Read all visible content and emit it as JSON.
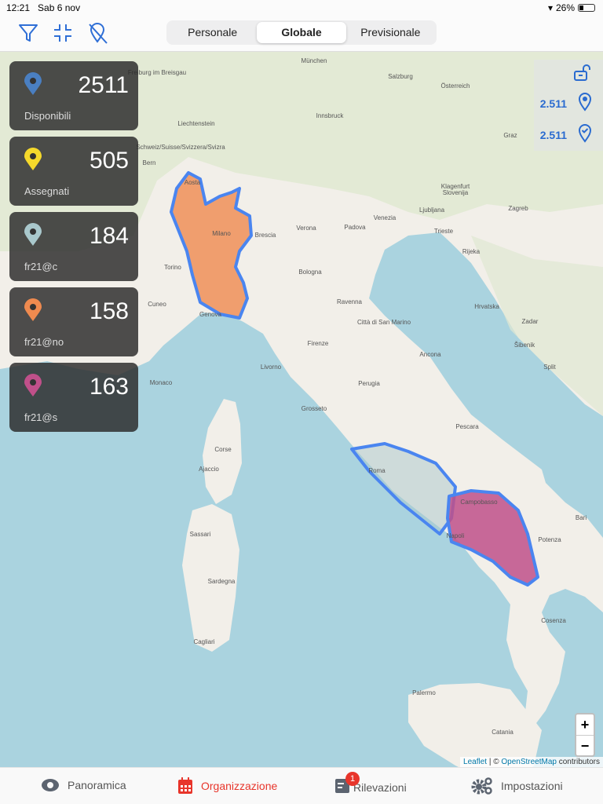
{
  "status": {
    "time": "12:21",
    "date": "Sab 6 nov",
    "battery": "26%",
    "battery_level": 0.26
  },
  "toolbar": {
    "icons": [
      "filter-icon",
      "collapse-icon",
      "location-off-icon"
    ]
  },
  "segments": {
    "items": [
      "Personale",
      "Globale",
      "Previsionale"
    ],
    "selected": "Globale"
  },
  "stats": [
    {
      "value": "2511",
      "label": "Disponibili",
      "color": "#4a7fc1"
    },
    {
      "value": "505",
      "label": "Assegnati",
      "color": "#f5d92b"
    },
    {
      "value": "184",
      "label": "fr21@c",
      "color": "#a9c8cc"
    },
    {
      "value": "158",
      "label": "fr21@no",
      "color": "#ef8a4f"
    },
    {
      "value": "163",
      "label": "fr21@s",
      "color": "#c0508a"
    }
  ],
  "right_panel": {
    "lock_icon": "lock-open-icon",
    "total": "2.511",
    "checked": "2.511"
  },
  "map": {
    "zoom_in": "+",
    "zoom_out": "−",
    "attribution": {
      "leaflet": "Leaflet",
      "sep": " | © ",
      "osm": "OpenStreetMap",
      "tail": " contributors"
    },
    "colors": {
      "region_border": "#4a85f0",
      "north_fill": "#ef8a4f",
      "south_fill": "#c0508a",
      "lazio_fill": "#a9c8cc"
    },
    "labels": [
      "München",
      "Salzburg",
      "Österreich",
      "Innsbruck",
      "Liechtenstein",
      "Freiburg im Breisgau",
      "Schweiz/Suisse/Svizzera/Svizra",
      "Bern",
      "Graz",
      "Klagenfurt",
      "Slovenija",
      "Ljubljana",
      "Zagreb",
      "Hrvatska",
      "Trieste",
      "Venezia",
      "Padova",
      "Verona",
      "Brescia",
      "Milano",
      "Torino",
      "Genova",
      "Bologna",
      "Firenze",
      "Ravenna",
      "Città di San Marino",
      "Ancona",
      "Perugia",
      "Roma",
      "Pescara",
      "Napoli",
      "Bari",
      "Cosenza",
      "Palermo",
      "Catania",
      "Sassari",
      "Cagliari",
      "Sardegna",
      "Corse",
      "Ajaccio",
      "Monaco",
      "Cuneo",
      "Aosta",
      "Livorno",
      "Grosseto",
      "Campobasso",
      "Potenza",
      "Split",
      "Zadar",
      "Šibenik",
      "Rijeka"
    ]
  },
  "tabs": [
    {
      "label": "Panoramica",
      "icon": "eye-icon"
    },
    {
      "label": "Organizzazione",
      "icon": "calendar-icon",
      "active": true
    },
    {
      "label": "Rilevazioni",
      "icon": "survey-icon",
      "badge": "1"
    },
    {
      "label": "Impostazioni",
      "icon": "gears-icon"
    }
  ]
}
